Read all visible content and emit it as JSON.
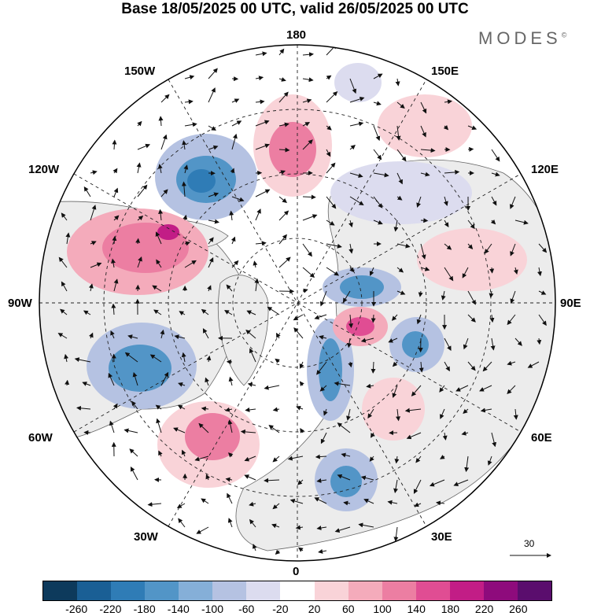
{
  "header": {
    "title": "Base 18/05/2025 00 UTC, valid 26/05/2025 00 UTC"
  },
  "brand": {
    "name": "MODES",
    "mark": "©"
  },
  "map": {
    "projection": "north polar stereographic",
    "longitude_labels": {
      "top": "180",
      "bottom": "0",
      "left": "90W",
      "right": "90E",
      "upper_left": "150W",
      "upper_left2": "120W",
      "upper_right": "150E",
      "upper_right2": "120E",
      "lower_left": "60W",
      "lower_left2": "30W",
      "lower_right": "60E",
      "lower_right2": "30E"
    },
    "reference_vector": "30",
    "anomaly_centers": [
      {
        "sign": "negative",
        "lon": "150W",
        "lat": 60
      },
      {
        "sign": "positive",
        "lon": "170W",
        "lat": 65
      },
      {
        "sign": "positive",
        "lon": "115W",
        "lat": 60
      },
      {
        "sign": "negative",
        "lon": "65W",
        "lat": 60
      },
      {
        "sign": "positive",
        "lon": "30W",
        "lat": 50
      },
      {
        "sign": "negative",
        "lon": "10E",
        "lat": 55
      },
      {
        "sign": "negative",
        "lon": "50E",
        "lat": 70
      },
      {
        "sign": "positive",
        "lon": "85E",
        "lat": 80
      },
      {
        "sign": "negative",
        "lon": "95E",
        "lat": 65
      },
      {
        "sign": "negative",
        "lon": "120E",
        "lat": 75
      }
    ]
  },
  "colorbar": {
    "colors": [
      "#0d3a5c",
      "#1a5f95",
      "#2f7cb6",
      "#5295c7",
      "#85afd8",
      "#b5c2e2",
      "#dcdcef",
      "#ffffff",
      "#f9d3d8",
      "#f4abbb",
      "#ec7ea2",
      "#e04d93",
      "#c21d86",
      "#8e0b7c",
      "#5a0d6d"
    ],
    "ticks": [
      "-260",
      "-220",
      "-180",
      "-140",
      "-100",
      "-60",
      "-20",
      "20",
      "60",
      "100",
      "140",
      "180",
      "220",
      "260"
    ]
  }
}
